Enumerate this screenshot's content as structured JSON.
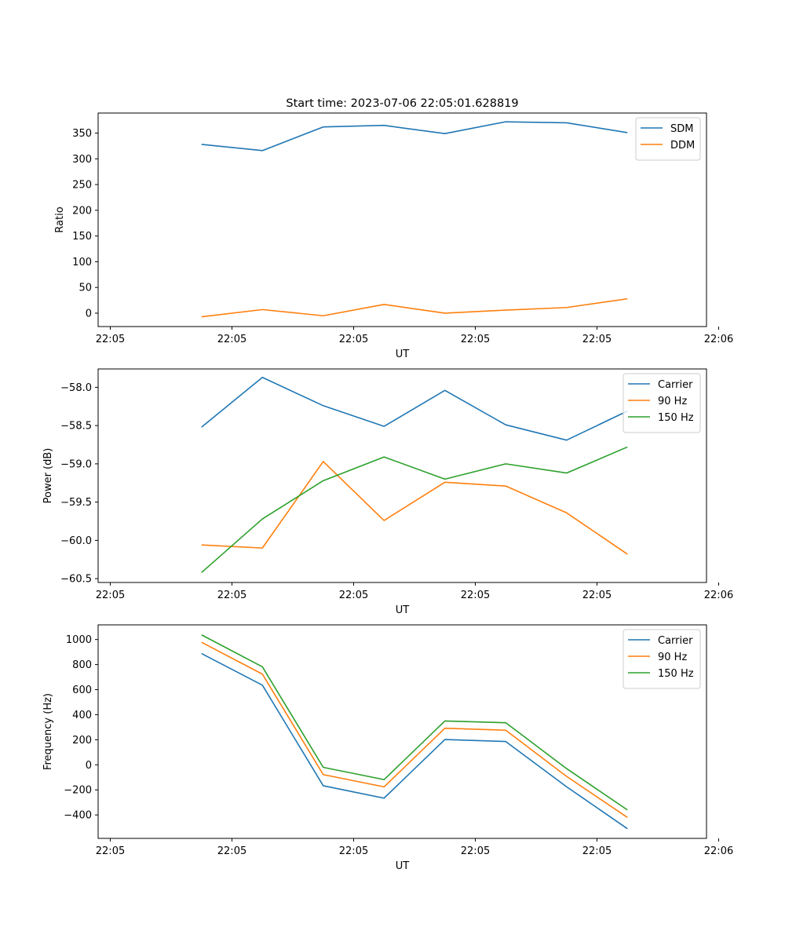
{
  "figure_title": "Start time: 2023-07-06 22:05:01.628819",
  "colors": {
    "blue": "#1f77b4",
    "orange": "#ff7f0e",
    "green": "#2ca02c",
    "axis": "#000000",
    "legend_border": "#cccccc"
  },
  "chart_data": [
    {
      "type": "line",
      "title": "Start time: 2023-07-06 22:05:01.628819",
      "xlabel": "UT",
      "ylabel": "Ratio",
      "x": [
        1,
        2,
        3,
        4,
        5,
        6,
        7,
        8
      ],
      "xlim": [
        -0.7,
        9.3
      ],
      "xticks": [
        -0.5,
        1.5,
        3.5,
        5.5,
        7.5,
        9.5
      ],
      "xtick_labels": [
        "22:05",
        "22:05",
        "22:05",
        "22:05",
        "22:05",
        "22:06"
      ],
      "ylim": [
        -26,
        389
      ],
      "yticks": [
        0,
        50,
        100,
        150,
        200,
        250,
        300,
        350
      ],
      "ytick_labels": [
        "0",
        "50",
        "100",
        "150",
        "200",
        "250",
        "300",
        "350"
      ],
      "legend_position": "top-right",
      "series": [
        {
          "name": "SDM",
          "color": "#1f77b4",
          "values": [
            328,
            316,
            362,
            365,
            349,
            372,
            370,
            351
          ]
        },
        {
          "name": "DDM",
          "color": "#ff7f0e",
          "values": [
            -7,
            7,
            -5,
            17,
            0,
            6,
            11,
            28
          ]
        }
      ]
    },
    {
      "type": "line",
      "title": "",
      "xlabel": "UT",
      "ylabel": "Power (dB)",
      "x": [
        1,
        2,
        3,
        4,
        5,
        6,
        7,
        8
      ],
      "xlim": [
        -0.7,
        9.3
      ],
      "xticks": [
        -0.5,
        1.5,
        3.5,
        5.5,
        7.5,
        9.5
      ],
      "xtick_labels": [
        "22:05",
        "22:05",
        "22:05",
        "22:05",
        "22:05",
        "22:06"
      ],
      "ylim": [
        -60.55,
        -57.76
      ],
      "yticks": [
        -60.5,
        -60.0,
        -59.5,
        -59.0,
        -58.5,
        -58.0
      ],
      "ytick_labels": [
        "−60.5",
        "−60.0",
        "−59.5",
        "−59.0",
        "−58.5",
        "−58.0"
      ],
      "legend_position": "top-right",
      "series": [
        {
          "name": "Carrier",
          "color": "#1f77b4",
          "values": [
            -58.52,
            -57.87,
            -58.24,
            -58.51,
            -58.04,
            -58.49,
            -58.69,
            -58.31
          ]
        },
        {
          "name": "90 Hz",
          "color": "#ff7f0e",
          "values": [
            -60.06,
            -60.1,
            -58.97,
            -59.74,
            -59.24,
            -59.29,
            -59.64,
            -60.18
          ]
        },
        {
          "name": "150 Hz",
          "color": "#2ca02c",
          "values": [
            -60.42,
            -59.72,
            -59.22,
            -58.91,
            -59.2,
            -59.0,
            -59.12,
            -58.78
          ]
        }
      ]
    },
    {
      "type": "line",
      "title": "",
      "xlabel": "UT",
      "ylabel": "Frequency (Hz)",
      "x": [
        1,
        2,
        3,
        4,
        5,
        6,
        7,
        8
      ],
      "xlim": [
        -0.7,
        9.3
      ],
      "xticks": [
        -0.5,
        1.5,
        3.5,
        5.5,
        7.5,
        9.5
      ],
      "xtick_labels": [
        "22:05",
        "22:05",
        "22:05",
        "22:05",
        "22:05",
        "22:06"
      ],
      "ylim": [
        -587,
        1117
      ],
      "yticks": [
        -400,
        -200,
        0,
        200,
        400,
        600,
        800,
        1000
      ],
      "ytick_labels": [
        "−400",
        "−200",
        "0",
        "200",
        "400",
        "600",
        "800",
        "1000"
      ],
      "legend_position": "top-right",
      "series": [
        {
          "name": "Carrier",
          "color": "#1f77b4",
          "values": [
            888,
            636,
            -167,
            -266,
            202,
            186,
            -175,
            -510
          ]
        },
        {
          "name": "90 Hz",
          "color": "#ff7f0e",
          "values": [
            978,
            724,
            -78,
            -176,
            292,
            276,
            -92,
            -420
          ]
        },
        {
          "name": "150 Hz",
          "color": "#2ca02c",
          "values": [
            1037,
            782,
            -20,
            -118,
            350,
            336,
            -30,
            -360
          ]
        }
      ]
    }
  ]
}
